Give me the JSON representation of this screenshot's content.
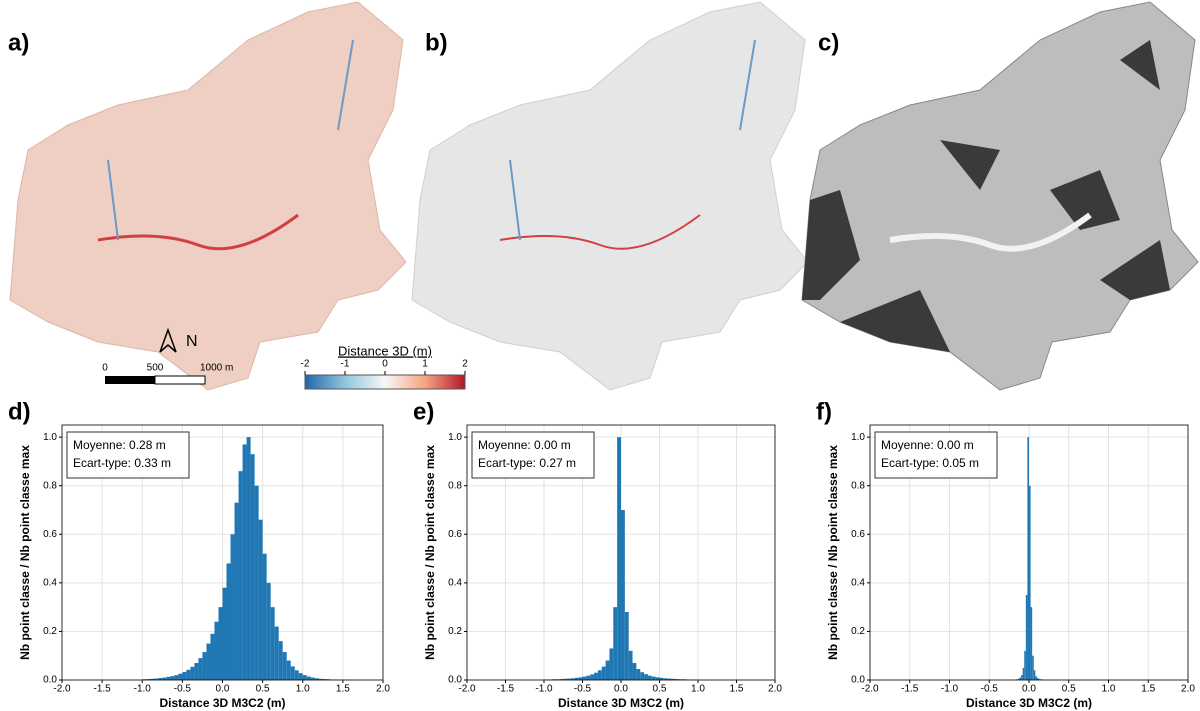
{
  "maps": {
    "panel_labels": [
      "a)",
      "b)",
      "c)"
    ],
    "north": "N",
    "scale_labels": [
      "0",
      "500",
      "1000 m"
    ],
    "colorbar": {
      "title": "Distance 3D (m)",
      "ticks": [
        -2,
        -1,
        0,
        1,
        2
      ]
    }
  },
  "chart_data": [
    {
      "type": "histogram",
      "panel_label": "d)",
      "color": "#1f77b4",
      "grid": true,
      "xlabel": "Distance 3D M3C2 (m)",
      "ylabel": "Nb point classe / Nb point classe max",
      "annotations": [
        "Moyenne: 0.28 m",
        "Ecart-type: 0.33 m"
      ],
      "bins": [
        -1,
        -0.95,
        -0.9,
        -0.85,
        -0.8,
        -0.75,
        -0.7,
        -0.65,
        -0.6,
        -0.55,
        -0.5,
        -0.45,
        -0.4,
        -0.35,
        -0.3,
        -0.25,
        -0.2,
        -0.15,
        -0.1,
        -0.05,
        0,
        0.05,
        0.1,
        0.15,
        0.2,
        0.25,
        0.3,
        0.35,
        0.4,
        0.45,
        0.5,
        0.55,
        0.6,
        0.65,
        0.7,
        0.75,
        0.8,
        0.85,
        0.9,
        0.95,
        1,
        1.05,
        1.1,
        1.15,
        1.2,
        1.25,
        1.3,
        1.35,
        1.4,
        1.45,
        1.5,
        1.55,
        1.6
      ],
      "values": [
        0.003,
        0.004,
        0.005,
        0.006,
        0.008,
        0.01,
        0.013,
        0.016,
        0.02,
        0.026,
        0.033,
        0.042,
        0.054,
        0.07,
        0.09,
        0.115,
        0.15,
        0.19,
        0.24,
        0.3,
        0.38,
        0.48,
        0.6,
        0.73,
        0.86,
        0.97,
        1.0,
        0.93,
        0.8,
        0.66,
        0.52,
        0.4,
        0.3,
        0.22,
        0.16,
        0.115,
        0.08,
        0.056,
        0.04,
        0.028,
        0.02,
        0.014,
        0.01,
        0.007,
        0.005,
        0.004,
        0.003,
        0.002,
        0.002,
        0.001,
        0.001,
        0.001
      ],
      "xlim": [
        -2,
        2
      ],
      "xticks": [
        {
          "value": -2,
          "label": "-2.0"
        },
        -1.5,
        {
          "value": -1,
          "label": "-1.0"
        },
        -0.5,
        {
          "value": 0,
          "label": "0.0"
        },
        0.5,
        {
          "value": 1,
          "label": "1.0"
        },
        1.5,
        {
          "value": 2,
          "label": "2.0"
        }
      ],
      "ylim": [
        0,
        1.05
      ],
      "yticks": [
        {
          "value": 0,
          "label": "0.0"
        },
        0.2,
        0.4,
        0.6,
        0.8,
        {
          "value": 1,
          "label": "1.0"
        }
      ]
    },
    {
      "type": "histogram",
      "panel_label": "e)",
      "color": "#1f77b4",
      "grid": true,
      "xlabel": "Distance 3D M3C2 (m)",
      "ylabel": "Nb point classe / Nb point classe max",
      "annotations": [
        "Moyenne: 0.00 m",
        "Ecart-type: 0.27 m"
      ],
      "bins": [
        -1,
        -0.95,
        -0.9,
        -0.85,
        -0.8,
        -0.75,
        -0.7,
        -0.65,
        -0.6,
        -0.55,
        -0.5,
        -0.45,
        -0.4,
        -0.35,
        -0.3,
        -0.25,
        -0.2,
        -0.15,
        -0.1,
        -0.05,
        0,
        0.05,
        0.1,
        0.15,
        0.2,
        0.25,
        0.3,
        0.35,
        0.4,
        0.45,
        0.5,
        0.55,
        0.6,
        0.65,
        0.7,
        0.75,
        0.8,
        0.85,
        0.9,
        0.95,
        1
      ],
      "values": [
        0.002,
        0.002,
        0.003,
        0.003,
        0.004,
        0.005,
        0.006,
        0.007,
        0.009,
        0.011,
        0.014,
        0.018,
        0.023,
        0.03,
        0.04,
        0.055,
        0.08,
        0.13,
        0.3,
        1.0,
        0.7,
        0.28,
        0.12,
        0.07,
        0.045,
        0.032,
        0.024,
        0.018,
        0.014,
        0.011,
        0.009,
        0.007,
        0.006,
        0.005,
        0.004,
        0.003,
        0.003,
        0.002,
        0.002,
        0.001
      ],
      "xlim": [
        -2,
        2
      ],
      "xticks": [
        {
          "value": -2,
          "label": "-2.0"
        },
        -1.5,
        {
          "value": -1,
          "label": "-1.0"
        },
        -0.5,
        {
          "value": 0,
          "label": "0.0"
        },
        0.5,
        {
          "value": 1,
          "label": "1.0"
        },
        1.5,
        {
          "value": 2,
          "label": "2.0"
        }
      ],
      "ylim": [
        0,
        1.05
      ],
      "yticks": [
        {
          "value": 0,
          "label": "0.0"
        },
        0.2,
        0.4,
        0.6,
        0.8,
        {
          "value": 1,
          "label": "1.0"
        }
      ]
    },
    {
      "type": "histogram",
      "panel_label": "f)",
      "color": "#1f77b4",
      "grid": true,
      "xlabel": "Distance 3D M3C2 (m)",
      "ylabel": "Nb point classe / Nb point classe max",
      "annotations": [
        "Moyenne: 0.00 m",
        "Ecart-type: 0.05 m"
      ],
      "bins": [
        -0.2,
        -0.18,
        -0.16,
        -0.14,
        -0.12,
        -0.1,
        -0.08,
        -0.06,
        -0.04,
        -0.02,
        0,
        0.02,
        0.04,
        0.06,
        0.08,
        0.1,
        0.12,
        0.14,
        0.16,
        0.18,
        0.2
      ],
      "values": [
        0.001,
        0.002,
        0.003,
        0.005,
        0.01,
        0.02,
        0.05,
        0.12,
        0.35,
        1.0,
        0.8,
        0.3,
        0.1,
        0.04,
        0.015,
        0.008,
        0.004,
        0.003,
        0.002,
        0.001
      ],
      "xlim": [
        -2,
        2
      ],
      "xticks": [
        {
          "value": -2,
          "label": "-2.0"
        },
        -1.5,
        {
          "value": -1,
          "label": "-1.0"
        },
        -0.5,
        {
          "value": 0,
          "label": "0.0"
        },
        0.5,
        {
          "value": 1,
          "label": "1.0"
        },
        1.5,
        {
          "value": 2,
          "label": "2.0"
        }
      ],
      "ylim": [
        0,
        1.05
      ],
      "yticks": [
        {
          "value": 0,
          "label": "0.0"
        },
        0.2,
        0.4,
        0.6,
        0.8,
        {
          "value": 1,
          "label": "1.0"
        }
      ]
    }
  ]
}
